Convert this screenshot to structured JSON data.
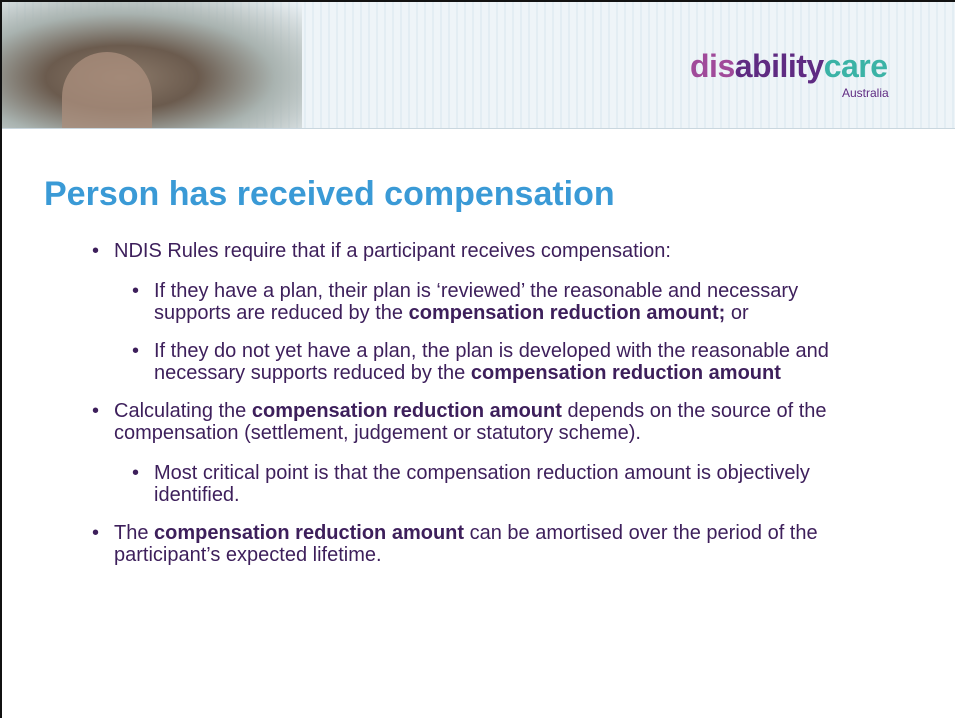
{
  "header": {
    "logo": {
      "parts": [
        "dis",
        "ability",
        "care"
      ],
      "tagline": "Australia"
    }
  },
  "title": "Person has received compensation",
  "bullets": [
    {
      "level": 1,
      "runs": [
        {
          "text": "NDIS Rules require that if a participant receives compensation:",
          "bold": false
        }
      ]
    },
    {
      "level": 2,
      "runs": [
        {
          "text": "If they have a plan, their plan is ‘reviewed’ the reasonable and necessary supports are reduced by the ",
          "bold": false
        },
        {
          "text": "compensation reduction amount;",
          "bold": true
        },
        {
          "text": " or",
          "bold": false
        }
      ]
    },
    {
      "level": 2,
      "runs": [
        {
          "text": "If they do not yet have a plan, the plan is developed with the reasonable and necessary supports reduced by the ",
          "bold": false
        },
        {
          "text": "compensation reduction amount",
          "bold": true
        }
      ]
    },
    {
      "level": 1,
      "runs": [
        {
          "text": "Calculating the ",
          "bold": false
        },
        {
          "text": "compensation reduction amount",
          "bold": true
        },
        {
          "text": " depends on the source of the compensation (settlement, judgement or statutory scheme).",
          "bold": false
        }
      ]
    },
    {
      "level": 2,
      "runs": [
        {
          "text": "Most critical point is that the compensation reduction amount is objectively identified.",
          "bold": false
        }
      ]
    },
    {
      "level": 1,
      "runs": [
        {
          "text": "The ",
          "bold": false
        },
        {
          "text": "compensation reduction amount",
          "bold": true
        },
        {
          "text": " can be amortised over the period of the participant’s expected lifetime.",
          "bold": false
        }
      ]
    }
  ]
}
